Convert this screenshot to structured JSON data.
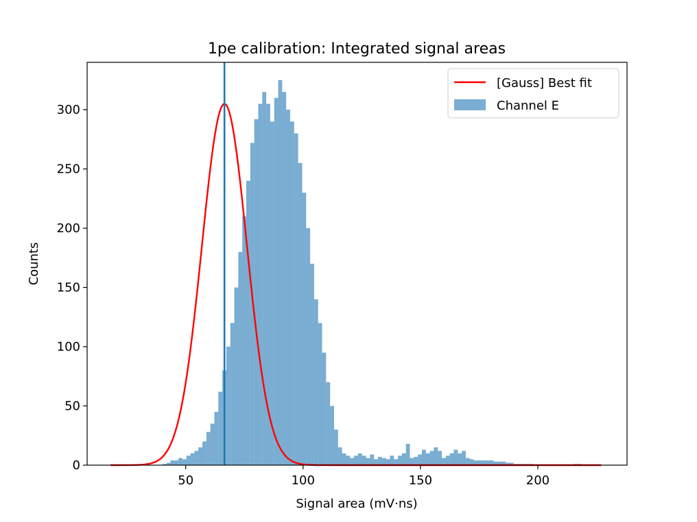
{
  "chart_data": {
    "type": "bar",
    "title": "1pe calibration: Integrated signal areas",
    "xlabel": "Signal area (mV·ns)",
    "ylabel": "Counts",
    "xlim": [
      8,
      238
    ],
    "ylim": [
      0,
      340
    ],
    "xticks": [
      50,
      100,
      150,
      200
    ],
    "yticks": [
      0,
      50,
      100,
      150,
      200,
      250,
      300
    ],
    "grid": false,
    "legend_position": "top-right",
    "colors": {
      "histogram": "#1f77b4",
      "fit": "#ff0000",
      "vline": "#1f77b4"
    },
    "histogram": {
      "name": "Channel E",
      "bin_start": 18,
      "bin_width": 1.7,
      "counts": [
        0,
        0,
        0,
        0,
        0,
        0,
        0,
        0,
        0,
        0,
        0,
        0,
        0,
        1,
        2,
        4,
        4,
        6,
        5,
        8,
        10,
        12,
        15,
        20,
        28,
        35,
        45,
        62,
        80,
        100,
        120,
        150,
        180,
        210,
        240,
        272,
        292,
        305,
        315,
        305,
        290,
        310,
        325,
        315,
        300,
        290,
        280,
        255,
        230,
        200,
        170,
        140,
        120,
        95,
        70,
        50,
        30,
        15,
        10,
        8,
        6,
        8,
        10,
        8,
        6,
        9,
        5,
        7,
        6,
        5,
        8,
        5,
        8,
        10,
        18,
        6,
        7,
        9,
        13,
        10,
        12,
        15,
        12,
        6,
        8,
        10,
        13,
        10,
        12,
        6,
        5,
        4,
        4,
        4,
        4,
        4,
        3,
        3,
        3,
        2,
        2,
        1,
        1,
        1,
        1,
        1,
        0,
        0,
        0,
        0,
        0,
        0,
        0,
        0,
        0,
        0,
        1,
        1,
        0,
        0,
        0,
        0,
        0,
        0,
        0,
        0,
        0,
        0,
        0
      ]
    },
    "fit": {
      "name": "[Gauss] Best fit",
      "amplitude": 305,
      "mean": 66.5,
      "sigma": 9.6,
      "x_range": [
        18,
        227
      ]
    },
    "vline_x": 66.5
  }
}
